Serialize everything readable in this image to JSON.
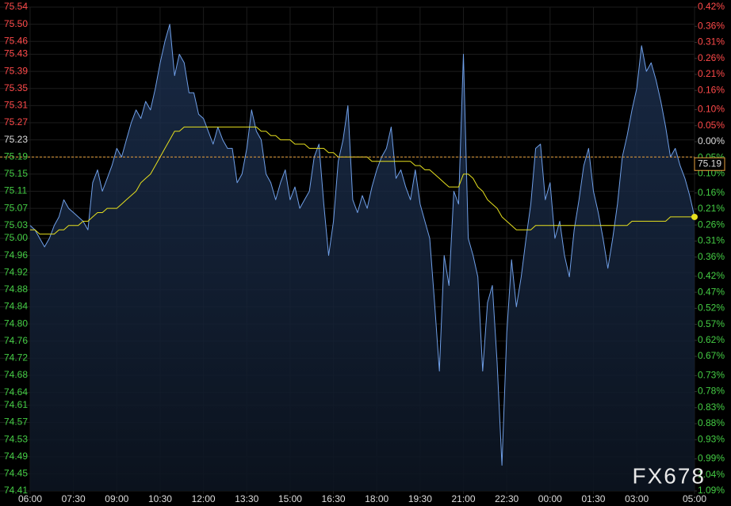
{
  "chart_data": {
    "type": "line",
    "watermark": "FX678",
    "categories": [
      "06:00",
      null,
      null,
      null,
      null,
      null,
      null,
      null,
      null,
      "07:30",
      null,
      null,
      null,
      null,
      null,
      null,
      null,
      null,
      "09:00",
      null,
      null,
      null,
      null,
      null,
      null,
      null,
      null,
      "10:30",
      null,
      null,
      null,
      null,
      null,
      null,
      null,
      null,
      "12:00",
      null,
      null,
      null,
      null,
      null,
      null,
      null,
      null,
      "13:30",
      null,
      null,
      null,
      null,
      null,
      null,
      null,
      null,
      "15:00",
      null,
      null,
      null,
      null,
      null,
      null,
      null,
      null,
      "16:30",
      null,
      null,
      null,
      null,
      null,
      null,
      null,
      null,
      "18:00",
      null,
      null,
      null,
      null,
      null,
      null,
      null,
      null,
      "19:30",
      null,
      null,
      null,
      null,
      null,
      null,
      null,
      null,
      "21:00",
      null,
      null,
      null,
      null,
      null,
      null,
      null,
      null,
      "22:30",
      null,
      null,
      null,
      null,
      null,
      null,
      null,
      null,
      "00:00",
      null,
      null,
      null,
      null,
      null,
      null,
      null,
      null,
      "01:30",
      null,
      null,
      null,
      null,
      null,
      null,
      null,
      null,
      "03:00",
      null,
      null,
      null,
      null,
      null,
      null,
      null,
      null,
      null,
      null,
      null,
      "05:00"
    ],
    "series": [
      {
        "color": "#6f9fe8",
        "values": [
          75.03,
          75.02,
          75.0,
          74.98,
          75.0,
          75.03,
          75.05,
          75.09,
          75.07,
          75.06,
          75.05,
          75.04,
          75.02,
          75.13,
          75.16,
          75.11,
          75.14,
          75.17,
          75.21,
          75.19,
          75.23,
          75.27,
          75.3,
          75.28,
          75.32,
          75.3,
          75.35,
          75.41,
          75.46,
          75.5,
          75.38,
          75.43,
          75.41,
          75.34,
          75.34,
          75.29,
          75.28,
          75.25,
          75.22,
          75.26,
          75.23,
          75.21,
          75.21,
          75.13,
          75.15,
          75.21,
          75.3,
          75.25,
          75.23,
          75.15,
          75.13,
          75.09,
          75.13,
          75.16,
          75.09,
          75.12,
          75.07,
          75.09,
          75.11,
          75.19,
          75.22,
          75.08,
          74.96,
          75.04,
          75.18,
          75.23,
          75.31,
          75.09,
          75.06,
          75.1,
          75.07,
          75.12,
          75.16,
          75.19,
          75.21,
          75.26,
          75.14,
          75.16,
          75.12,
          75.09,
          75.16,
          75.08,
          75.04,
          75.0,
          74.85,
          74.69,
          74.96,
          74.89,
          75.11,
          75.08,
          75.43,
          75.0,
          74.96,
          74.91,
          74.69,
          74.85,
          74.89,
          74.71,
          74.47,
          74.78,
          74.95,
          74.84,
          74.91,
          75.0,
          75.08,
          75.21,
          75.22,
          75.09,
          75.13,
          75.0,
          75.04,
          74.96,
          74.91,
          75.02,
          75.09,
          75.17,
          75.21,
          75.11,
          75.06,
          75.0,
          74.93,
          75.0,
          75.08,
          75.19,
          75.24,
          75.3,
          75.35,
          75.45,
          75.39,
          75.41,
          75.37,
          75.32,
          75.26,
          75.19,
          75.21,
          75.17,
          75.14,
          75.1,
          75.05
        ]
      },
      {
        "color": "#e6e01e",
        "values": [
          75.02,
          75.02,
          75.01,
          75.01,
          75.01,
          75.01,
          75.02,
          75.02,
          75.03,
          75.03,
          75.03,
          75.04,
          75.04,
          75.05,
          75.06,
          75.06,
          75.07,
          75.07,
          75.07,
          75.08,
          75.09,
          75.1,
          75.11,
          75.13,
          75.14,
          75.15,
          75.17,
          75.19,
          75.21,
          75.23,
          75.25,
          75.25,
          75.26,
          75.26,
          75.26,
          75.26,
          75.26,
          75.26,
          75.26,
          75.26,
          75.26,
          75.26,
          75.26,
          75.26,
          75.26,
          75.26,
          75.26,
          75.26,
          75.25,
          75.25,
          75.24,
          75.24,
          75.23,
          75.23,
          75.23,
          75.22,
          75.22,
          75.22,
          75.21,
          75.21,
          75.21,
          75.21,
          75.2,
          75.2,
          75.19,
          75.19,
          75.19,
          75.19,
          75.19,
          75.19,
          75.19,
          75.18,
          75.18,
          75.18,
          75.18,
          75.18,
          75.18,
          75.18,
          75.18,
          75.18,
          75.17,
          75.17,
          75.16,
          75.16,
          75.15,
          75.14,
          75.13,
          75.12,
          75.12,
          75.12,
          75.15,
          75.15,
          75.14,
          75.12,
          75.11,
          75.09,
          75.08,
          75.07,
          75.05,
          75.04,
          75.03,
          75.02,
          75.02,
          75.02,
          75.02,
          75.03,
          75.03,
          75.03,
          75.03,
          75.03,
          75.03,
          75.03,
          75.03,
          75.03,
          75.03,
          75.03,
          75.03,
          75.03,
          75.03,
          75.03,
          75.03,
          75.03,
          75.03,
          75.03,
          75.03,
          75.04,
          75.04,
          75.04,
          75.04,
          75.04,
          75.04,
          75.04,
          75.04,
          75.05,
          75.05,
          75.05,
          75.05,
          75.05,
          75.05
        ]
      }
    ],
    "reference_line": 75.19,
    "reference_color": "#e8a03c",
    "ylim": [
      74.41,
      75.54
    ],
    "yticks": [
      75.54,
      {
        "value": 75.5,
        "label": "75.50"
      },
      75.46,
      75.43,
      75.39,
      75.35,
      75.31,
      75.27,
      75.23,
      75.19,
      75.15,
      75.11,
      75.07,
      75.03,
      {
        "value": 75,
        "label": "75.00"
      },
      74.96,
      74.92,
      74.88,
      74.84,
      {
        "value": 74.8,
        "label": "74.80"
      },
      74.76,
      74.72,
      74.68,
      74.64,
      74.61,
      74.57,
      74.53,
      74.49,
      74.45,
      74.41
    ],
    "y2lim": [
      -1.09,
      0.42
    ],
    "y2ticks": [
      {
        "value": 0.42,
        "label": "0.42%"
      },
      {
        "value": 0.36,
        "label": "0.36%"
      },
      {
        "value": 0.31,
        "label": "0.31%"
      },
      {
        "value": 0.26,
        "label": "0.26%"
      },
      {
        "value": 0.21,
        "label": "0.21%"
      },
      {
        "value": 0.16,
        "label": "0.16%"
      },
      {
        "value": 0.1,
        "label": "0.10%"
      },
      {
        "value": 0.05,
        "label": "0.05%"
      },
      {
        "value": 0,
        "label": "0.00%"
      },
      {
        "value": -0.05,
        "label": "0.05%"
      },
      {
        "value": -0.1,
        "label": "0.10%"
      },
      {
        "value": -0.16,
        "label": "0.16%"
      },
      {
        "value": -0.21,
        "label": "0.21%"
      },
      {
        "value": -0.26,
        "label": "0.26%"
      },
      {
        "value": -0.31,
        "label": "0.31%"
      },
      {
        "value": -0.36,
        "label": "0.36%"
      },
      {
        "value": -0.42,
        "label": "0.42%"
      },
      {
        "value": -0.47,
        "label": "0.47%"
      },
      {
        "value": -0.52,
        "label": "0.52%"
      },
      {
        "value": -0.57,
        "label": "0.57%"
      },
      {
        "value": -0.62,
        "label": "0.62%"
      },
      {
        "value": -0.67,
        "label": "0.67%"
      },
      {
        "value": -0.73,
        "label": "0.73%"
      },
      {
        "value": -0.78,
        "label": "0.78%"
      },
      {
        "value": -0.83,
        "label": "0.83%"
      },
      {
        "value": -0.88,
        "label": "0.88%"
      },
      {
        "value": -0.93,
        "label": "0.93%"
      },
      {
        "value": -0.99,
        "label": "0.99%"
      },
      {
        "value": -1.04,
        "label": "1.04%"
      },
      {
        "value": -1.09,
        "label": "1.09%"
      }
    ],
    "up_color": "#ff4a4a",
    "down_color": "#44cc44",
    "flat_color": "#dddddd",
    "grid": true
  }
}
